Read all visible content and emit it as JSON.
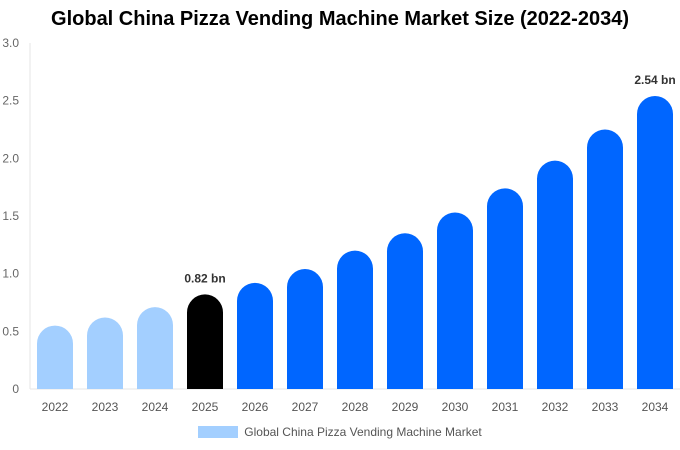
{
  "chart_data": {
    "type": "bar",
    "title": "Global China Pizza Vending Machine Market Size (2022-2034)",
    "categories": [
      "2022",
      "2023",
      "2024",
      "2025",
      "2026",
      "2027",
      "2028",
      "2029",
      "2030",
      "2031",
      "2032",
      "2033",
      "2034"
    ],
    "series": [
      {
        "name": "Global China Pizza Vending Machine Market",
        "values": [
          0.55,
          0.62,
          0.71,
          0.82,
          0.92,
          1.04,
          1.2,
          1.35,
          1.53,
          1.74,
          1.98,
          2.25,
          2.54
        ]
      }
    ],
    "data_labels": [
      {
        "category": "2025",
        "text": "0.82 bn"
      },
      {
        "category": "2034",
        "text": "2.54 bn"
      }
    ],
    "ylim": [
      0,
      3.0
    ],
    "yticks": [
      "0",
      "0.5",
      "1.0",
      "1.5",
      "2.0",
      "2.5",
      "3.0"
    ],
    "xlabel": "",
    "ylabel": "",
    "grid": false,
    "legend": "bottom",
    "colors": {
      "historical": "#a3cfff",
      "current": "#000000",
      "forecast": "#0066ff"
    },
    "bar_color_groups": [
      "historical",
      "historical",
      "historical",
      "current",
      "forecast",
      "forecast",
      "forecast",
      "forecast",
      "forecast",
      "forecast",
      "forecast",
      "forecast",
      "forecast"
    ]
  }
}
